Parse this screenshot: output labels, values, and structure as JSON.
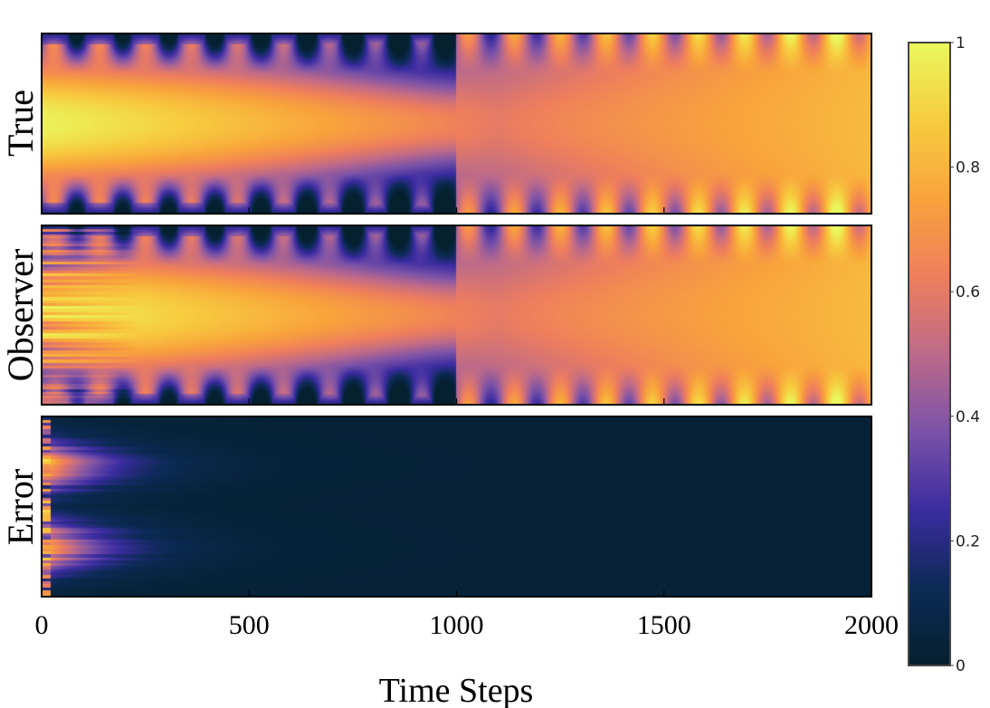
{
  "chart_data": {
    "type": "heatmap",
    "panels": [
      {
        "label": "True",
        "field": "true_state"
      },
      {
        "label": "Observer",
        "field": "observer_estimate"
      },
      {
        "label": "Error",
        "field": "estimation_error"
      }
    ],
    "x": {
      "label": "Time Steps",
      "range": [
        0,
        2000
      ],
      "ticks": [
        0,
        500,
        1000,
        1500,
        2000
      ],
      "tick_labels": [
        "0",
        "500",
        "1000",
        "1500",
        "2000"
      ]
    },
    "colorbar": {
      "range": [
        0,
        1
      ],
      "ticks": [
        0,
        0.2,
        0.4,
        0.6,
        0.8,
        1
      ],
      "tick_labels": [
        "0",
        "0.2",
        "0.4",
        "0.6",
        "0.8",
        "1"
      ],
      "colormap": "thermal",
      "stops": [
        "#05202e",
        "#0c2a55",
        "#3b2ca0",
        "#7a52a8",
        "#bd6a8a",
        "#ef7e5d",
        "#f8a33c",
        "#f7cc3f",
        "#e9f85e"
      ]
    },
    "description_values": {
      "center_value_at_start": 0.98,
      "center_value_at_1000": 0.6,
      "center_value_at_2000": 0.82,
      "edge_value_before_1000": 0.1,
      "error_initial_max": 0.95,
      "error_after_300": 0.03
    }
  }
}
